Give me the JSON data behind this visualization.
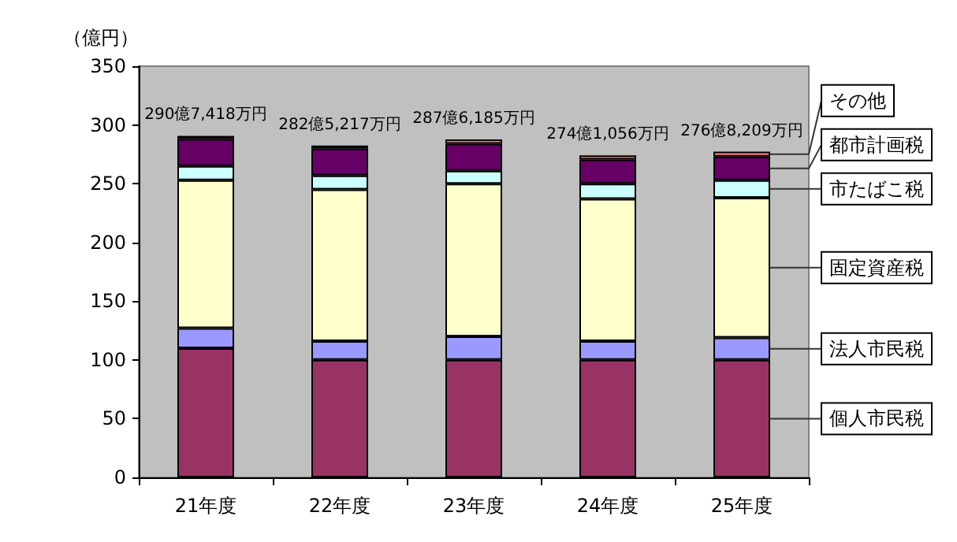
{
  "chart_data": {
    "type": "bar",
    "stacked": true,
    "ylabel": "（億円）",
    "categories": [
      "21年度",
      "22年度",
      "23年度",
      "24年度",
      "25年度"
    ],
    "series": [
      {
        "name": "個人市民税",
        "color": "#993366",
        "values": [
          110,
          100,
          100,
          100,
          100
        ]
      },
      {
        "name": "法人市民税",
        "color": "#9999ff",
        "values": [
          17,
          16,
          20,
          16,
          19
        ]
      },
      {
        "name": "固定資産税",
        "color": "#ffffcc",
        "values": [
          126,
          129,
          130,
          121,
          119
        ]
      },
      {
        "name": "市たばこ税",
        "color": "#ccffff",
        "values": [
          12,
          12,
          11,
          13,
          15
        ]
      },
      {
        "name": "都市計画税",
        "color": "#660066",
        "values": [
          23,
          23,
          23,
          20.5,
          20
        ]
      },
      {
        "name": "その他",
        "color": "#ff8080",
        "values": [
          2.7,
          2.5,
          3.6,
          3.6,
          4.2
        ]
      }
    ],
    "totals": [
      "290億7,418万円",
      "282億5,217万円",
      "287億6,185万円",
      "274億1,056万円",
      "276億8,209万円"
    ],
    "ylim": [
      0,
      350
    ],
    "yticks": [
      0,
      50,
      100,
      150,
      200,
      250,
      300,
      350
    ],
    "grid": false,
    "legend": "right"
  }
}
